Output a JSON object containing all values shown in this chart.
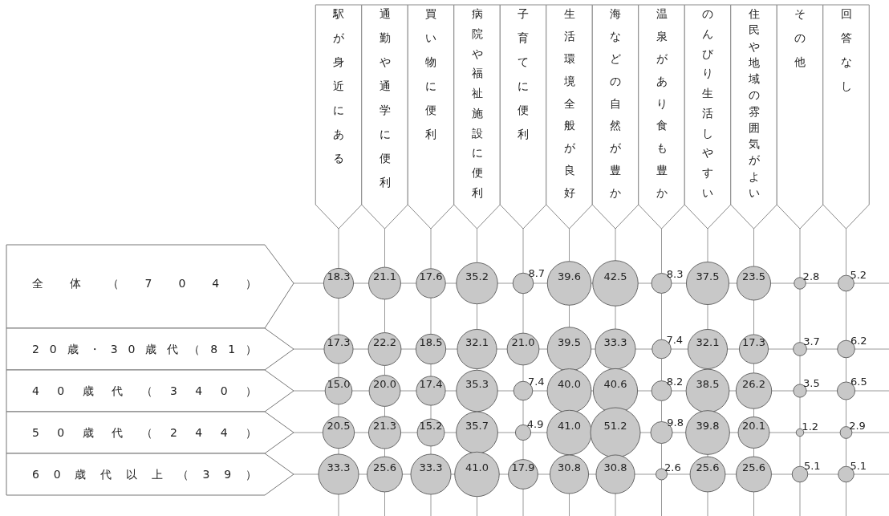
{
  "chart_data": {
    "type": "heatmap",
    "categories": [
      "駅が身近にある",
      "通勤や通学に便利",
      "買い物に便利",
      "病院や福祉施設に便利",
      "子育てに便利",
      "生活環境全般が良好",
      "海などの自然が豊か",
      "温泉があり食も豊か",
      "のんびり生活しやすい",
      "住民や地域の雰囲気がよい",
      "その他",
      "回答なし"
    ],
    "y_categories": [
      "全体（704）",
      "20歳・30歳代（81）",
      "40歳代（340）",
      "50歳代（244）",
      "60歳代以上（39）"
    ],
    "cells": [
      [
        18.3,
        21.1,
        17.6,
        35.2,
        8.7,
        39.6,
        42.5,
        8.3,
        37.5,
        23.5,
        2.8,
        5.2
      ],
      [
        17.3,
        22.2,
        18.5,
        32.1,
        21.0,
        39.5,
        33.3,
        7.4,
        32.1,
        17.3,
        3.7,
        6.2
      ],
      [
        15.0,
        20.0,
        17.4,
        35.3,
        7.4,
        40.0,
        40.6,
        8.2,
        38.5,
        26.2,
        3.5,
        6.5
      ],
      [
        20.5,
        21.3,
        15.2,
        35.7,
        4.9,
        41.0,
        51.2,
        9.8,
        39.8,
        20.1,
        1.2,
        2.9
      ],
      [
        33.3,
        25.6,
        33.3,
        41.0,
        17.9,
        30.8,
        30.8,
        2.6,
        25.6,
        25.6,
        5.1,
        5.1
      ]
    ],
    "color": "#c8c8c8",
    "cell_labels": [
      [
        "18.3",
        "21.1",
        "17.6",
        "35.2",
        "8.7",
        "39.6",
        "42.5",
        "8.3",
        "37.5",
        "23.5",
        "2.8",
        "5.2"
      ],
      [
        "17.3",
        "22.2",
        "18.5",
        "32.1",
        "21.0",
        "39.5",
        "33.3",
        "7.4",
        "32.1",
        "17.3",
        "3.7",
        "6.2"
      ],
      [
        "15.0",
        "20.0",
        "17.4",
        "35.3",
        "7.4",
        "40.0",
        "40.6",
        "8.2",
        "38.5",
        "26.2",
        "3.5",
        "6.5"
      ],
      [
        "20.5",
        "21.3",
        "15.2",
        "35.7",
        "4.9",
        "41.0",
        "51.2",
        "9.8",
        "39.8",
        "20.1",
        "1.2",
        "2.9"
      ],
      [
        "33.3",
        "25.6",
        "33.3",
        "41.0",
        "17.9",
        "30.8",
        "30.8",
        "2.6",
        "25.6",
        "25.6",
        "5.1",
        "5.1"
      ]
    ],
    "grid": true,
    "data_labels": true
  }
}
